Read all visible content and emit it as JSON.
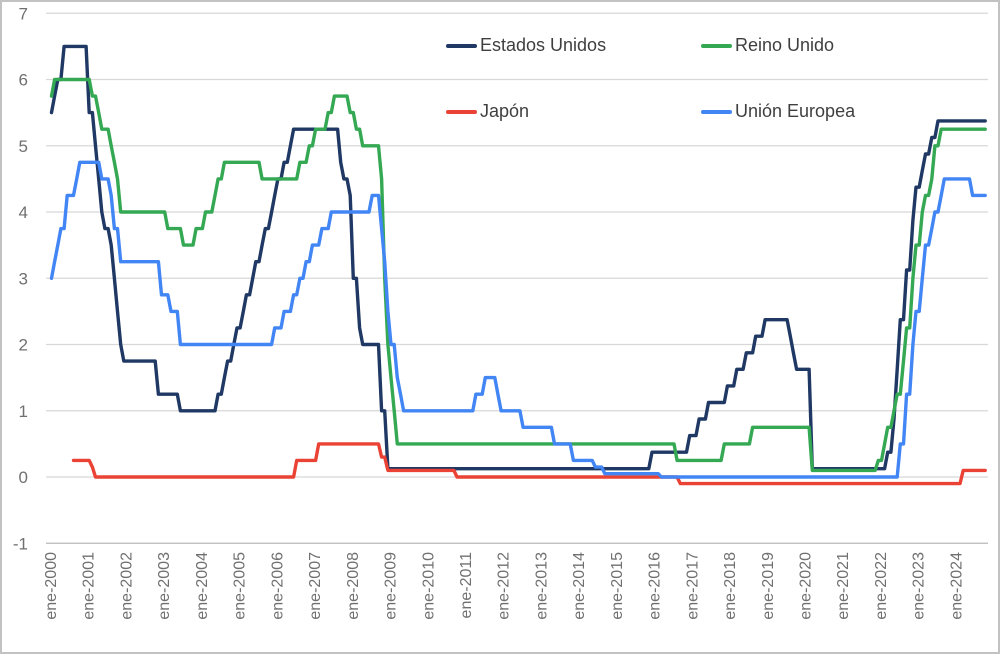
{
  "chart_data": {
    "type": "line",
    "title": "",
    "description": "Monthly central bank policy interest rates (%), Jan 2000 - Oct 2024, step series",
    "x_start": "2000-01",
    "x_end": "2024-10",
    "x_tick_labels": [
      "ene-2000",
      "ene-2001",
      "ene-2002",
      "ene-2003",
      "ene-2004",
      "ene-2005",
      "ene-2006",
      "ene-2007",
      "ene-2008",
      "ene-2009",
      "ene-2010",
      "ene-2011",
      "ene-2012",
      "ene-2013",
      "ene-2014",
      "ene-2015",
      "ene-2016",
      "ene-2017",
      "ene-2018",
      "ene-2019",
      "ene-2020",
      "ene-2021",
      "ene-2022",
      "ene-2023",
      "ene-2024"
    ],
    "y_min": -1,
    "y_max": 7,
    "y_ticks": [
      7,
      6,
      5,
      4,
      3,
      2,
      1,
      0,
      -1
    ],
    "grid": true,
    "legend_position": "top-center, 2 columns, transparent background",
    "style": {
      "grid_color": "#d8d8d8",
      "axis_line_color": "#b8b8b8",
      "tick_label_color": "#707070",
      "legend_text_color": "#3f3f3f",
      "background": "#ffffff"
    },
    "series": [
      {
        "id": "estados-unidos",
        "name": "Estados Unidos",
        "color": "#1f3864",
        "steps": [
          [
            "2000-01",
            5.5
          ],
          [
            "2000-02",
            5.75
          ],
          [
            "2000-03",
            6.0
          ],
          [
            "2000-05",
            6.5
          ],
          [
            "2001-01",
            5.5
          ],
          [
            "2001-03",
            5.0
          ],
          [
            "2001-04",
            4.5
          ],
          [
            "2001-05",
            4.0
          ],
          [
            "2001-06",
            3.75
          ],
          [
            "2001-08",
            3.5
          ],
          [
            "2001-09",
            3.0
          ],
          [
            "2001-10",
            2.5
          ],
          [
            "2001-11",
            2.0
          ],
          [
            "2001-12",
            1.75
          ],
          [
            "2002-11",
            1.25
          ],
          [
            "2003-06",
            1.0
          ],
          [
            "2004-06",
            1.25
          ],
          [
            "2004-08",
            1.5
          ],
          [
            "2004-09",
            1.75
          ],
          [
            "2004-11",
            2.0
          ],
          [
            "2004-12",
            2.25
          ],
          [
            "2005-02",
            2.5
          ],
          [
            "2005-03",
            2.75
          ],
          [
            "2005-05",
            3.0
          ],
          [
            "2005-06",
            3.25
          ],
          [
            "2005-08",
            3.5
          ],
          [
            "2005-09",
            3.75
          ],
          [
            "2005-11",
            4.0
          ],
          [
            "2005-12",
            4.25
          ],
          [
            "2006-01",
            4.5
          ],
          [
            "2006-03",
            4.75
          ],
          [
            "2006-05",
            5.0
          ],
          [
            "2006-06",
            5.25
          ],
          [
            "2007-09",
            4.75
          ],
          [
            "2007-10",
            4.5
          ],
          [
            "2007-12",
            4.25
          ],
          [
            "2008-01",
            3.0
          ],
          [
            "2008-03",
            2.25
          ],
          [
            "2008-04",
            2.0
          ],
          [
            "2008-10",
            1.0
          ],
          [
            "2008-12",
            0.125
          ],
          [
            "2015-12",
            0.375
          ],
          [
            "2016-12",
            0.625
          ],
          [
            "2017-03",
            0.875
          ],
          [
            "2017-06",
            1.125
          ],
          [
            "2017-12",
            1.375
          ],
          [
            "2018-03",
            1.625
          ],
          [
            "2018-06",
            1.875
          ],
          [
            "2018-09",
            2.125
          ],
          [
            "2018-12",
            2.375
          ],
          [
            "2019-08",
            2.125
          ],
          [
            "2019-09",
            1.875
          ],
          [
            "2019-10",
            1.625
          ],
          [
            "2020-03",
            0.125
          ],
          [
            "2022-03",
            0.375
          ],
          [
            "2022-05",
            0.875
          ],
          [
            "2022-06",
            1.625
          ],
          [
            "2022-07",
            2.375
          ],
          [
            "2022-09",
            3.125
          ],
          [
            "2022-11",
            3.875
          ],
          [
            "2022-12",
            4.375
          ],
          [
            "2023-02",
            4.625
          ],
          [
            "2023-03",
            4.875
          ],
          [
            "2023-05",
            5.125
          ],
          [
            "2023-07",
            5.375
          ]
        ]
      },
      {
        "id": "reino-unido",
        "name": "Reino Unido",
        "color": "#34a853",
        "steps": [
          [
            "2000-01",
            5.75
          ],
          [
            "2000-02",
            6.0
          ],
          [
            "2001-02",
            5.75
          ],
          [
            "2001-04",
            5.5
          ],
          [
            "2001-05",
            5.25
          ],
          [
            "2001-08",
            5.0
          ],
          [
            "2001-09",
            4.75
          ],
          [
            "2001-10",
            4.5
          ],
          [
            "2001-11",
            4.0
          ],
          [
            "2003-02",
            3.75
          ],
          [
            "2003-07",
            3.5
          ],
          [
            "2003-11",
            3.75
          ],
          [
            "2004-02",
            4.0
          ],
          [
            "2004-05",
            4.25
          ],
          [
            "2004-06",
            4.5
          ],
          [
            "2004-08",
            4.75
          ],
          [
            "2005-08",
            4.5
          ],
          [
            "2006-08",
            4.75
          ],
          [
            "2006-11",
            5.0
          ],
          [
            "2007-01",
            5.25
          ],
          [
            "2007-05",
            5.5
          ],
          [
            "2007-07",
            5.75
          ],
          [
            "2007-12",
            5.5
          ],
          [
            "2008-02",
            5.25
          ],
          [
            "2008-04",
            5.0
          ],
          [
            "2008-10",
            4.5
          ],
          [
            "2008-11",
            3.0
          ],
          [
            "2008-12",
            2.0
          ],
          [
            "2009-01",
            1.5
          ],
          [
            "2009-02",
            1.0
          ],
          [
            "2009-03",
            0.5
          ],
          [
            "2016-08",
            0.25
          ],
          [
            "2017-11",
            0.5
          ],
          [
            "2018-08",
            0.75
          ],
          [
            "2020-03",
            0.1
          ],
          [
            "2021-12",
            0.25
          ],
          [
            "2022-02",
            0.5
          ],
          [
            "2022-03",
            0.75
          ],
          [
            "2022-05",
            1.0
          ],
          [
            "2022-06",
            1.25
          ],
          [
            "2022-08",
            1.75
          ],
          [
            "2022-09",
            2.25
          ],
          [
            "2022-11",
            3.0
          ],
          [
            "2022-12",
            3.5
          ],
          [
            "2023-02",
            4.0
          ],
          [
            "2023-03",
            4.25
          ],
          [
            "2023-05",
            4.5
          ],
          [
            "2023-06",
            5.0
          ],
          [
            "2023-08",
            5.25
          ]
        ]
      },
      {
        "id": "japon",
        "name": "Japón",
        "color": "#ea4335",
        "steps": [
          [
            "2000-08",
            0.25
          ],
          [
            "2001-02",
            0.15
          ],
          [
            "2001-03",
            0.0
          ],
          [
            "2006-07",
            0.25
          ],
          [
            "2007-02",
            0.5
          ],
          [
            "2008-10",
            0.3
          ],
          [
            "2008-12",
            0.1
          ],
          [
            "2010-10",
            0.0
          ],
          [
            "2016-09",
            -0.1
          ],
          [
            "2024-03",
            0.1
          ]
        ]
      },
      {
        "id": "union-europea",
        "name": "Unión Europea",
        "color": "#4285f4",
        "steps": [
          [
            "2000-01",
            3.0
          ],
          [
            "2000-02",
            3.25
          ],
          [
            "2000-03",
            3.5
          ],
          [
            "2000-04",
            3.75
          ],
          [
            "2000-06",
            4.25
          ],
          [
            "2000-09",
            4.5
          ],
          [
            "2000-10",
            4.75
          ],
          [
            "2001-05",
            4.5
          ],
          [
            "2001-08",
            4.25
          ],
          [
            "2001-09",
            3.75
          ],
          [
            "2001-11",
            3.25
          ],
          [
            "2002-12",
            2.75
          ],
          [
            "2003-03",
            2.5
          ],
          [
            "2003-06",
            2.0
          ],
          [
            "2005-12",
            2.25
          ],
          [
            "2006-03",
            2.5
          ],
          [
            "2006-06",
            2.75
          ],
          [
            "2006-08",
            3.0
          ],
          [
            "2006-10",
            3.25
          ],
          [
            "2006-12",
            3.5
          ],
          [
            "2007-03",
            3.75
          ],
          [
            "2007-06",
            4.0
          ],
          [
            "2008-07",
            4.25
          ],
          [
            "2008-10",
            3.75
          ],
          [
            "2008-11",
            3.25
          ],
          [
            "2008-12",
            2.5
          ],
          [
            "2009-01",
            2.0
          ],
          [
            "2009-03",
            1.5
          ],
          [
            "2009-04",
            1.25
          ],
          [
            "2009-05",
            1.0
          ],
          [
            "2011-04",
            1.25
          ],
          [
            "2011-07",
            1.5
          ],
          [
            "2011-11",
            1.25
          ],
          [
            "2011-12",
            1.0
          ],
          [
            "2012-07",
            0.75
          ],
          [
            "2013-05",
            0.5
          ],
          [
            "2013-11",
            0.25
          ],
          [
            "2014-06",
            0.15
          ],
          [
            "2014-09",
            0.05
          ],
          [
            "2016-03",
            0.0
          ],
          [
            "2022-07",
            0.5
          ],
          [
            "2022-09",
            1.25
          ],
          [
            "2022-11",
            2.0
          ],
          [
            "2022-12",
            2.5
          ],
          [
            "2023-02",
            3.0
          ],
          [
            "2023-03",
            3.5
          ],
          [
            "2023-05",
            3.75
          ],
          [
            "2023-06",
            4.0
          ],
          [
            "2023-08",
            4.25
          ],
          [
            "2023-09",
            4.5
          ],
          [
            "2024-06",
            4.25
          ]
        ]
      }
    ]
  }
}
